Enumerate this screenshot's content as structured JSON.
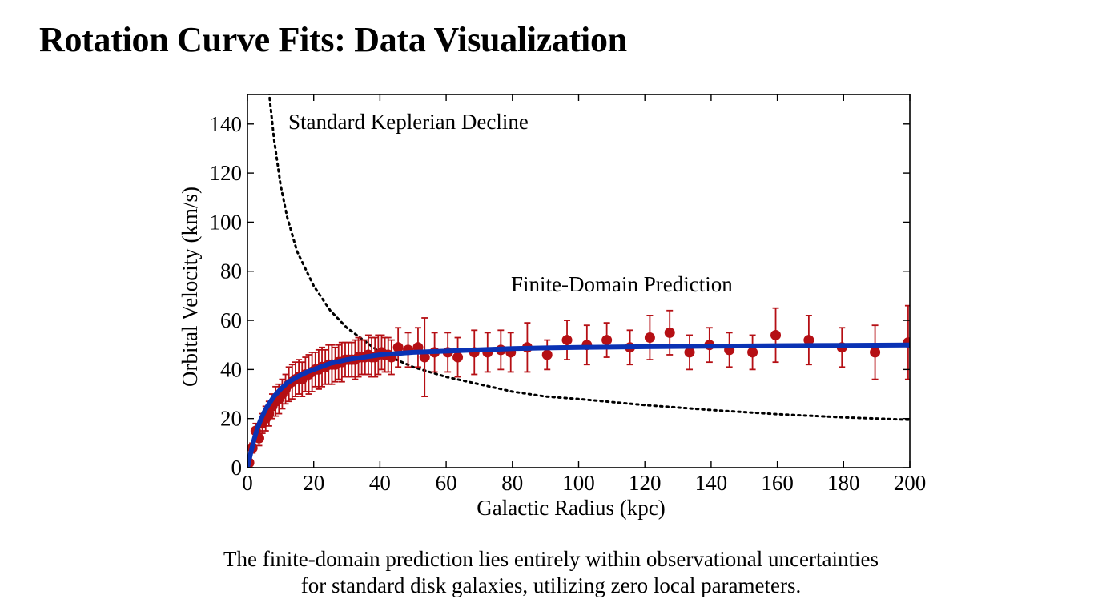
{
  "page": {
    "title": "Rotation Curve Fits: Data Visualization",
    "caption_line1": "The finite-domain prediction lies entirely within observational uncertainties",
    "caption_line2": "for standard disk galaxies, utilizing zero local parameters."
  },
  "colors": {
    "observed": "#b50f14",
    "prediction": "#0a32b4",
    "keplerian": "#000000",
    "axes": "#000000"
  },
  "chart_data": {
    "type": "scatter",
    "title": "",
    "xlabel": "Galactic Radius (kpc)",
    "ylabel": "Orbital Velocity (km/s)",
    "xlim": [
      0,
      200
    ],
    "ylim": [
      0,
      150
    ],
    "x_ticks": [
      0,
      20,
      40,
      60,
      80,
      100,
      120,
      140,
      160,
      180,
      200
    ],
    "y_ticks": [
      0,
      20,
      40,
      60,
      80,
      100,
      120,
      140
    ],
    "grid": false,
    "legend": "none",
    "annotations": [
      {
        "text": "Standard Keplerian Decline",
        "x": 12.5,
        "y": 140
      },
      {
        "text": "Finite-Domain Prediction",
        "x": 80.5,
        "y": 74
      }
    ],
    "series": [
      {
        "type": "scatter_errorbar",
        "x": [
          0.5,
          1.5,
          2.5,
          3.5,
          4.5,
          5.5,
          6.5,
          7.5,
          8.5,
          9.5,
          10.5,
          11.5,
          12.5,
          13.5,
          14.5,
          15.5,
          16.5,
          17.5,
          18.5,
          19.5,
          20.5,
          21.5,
          22.5,
          23.5,
          24.5,
          25.5,
          26.5,
          27.5,
          28.5,
          29.5,
          30.5,
          31.5,
          32.5,
          33.5,
          34.5,
          35.5,
          36.5,
          37.5,
          38.5,
          39.5,
          40.5,
          41.5,
          42.5,
          43.5,
          45.5,
          48.5,
          51.5,
          53.5,
          56.5,
          60.5,
          63.5,
          68.5,
          72.5,
          76.5,
          79.5,
          84.5,
          90.5,
          96.5,
          102.5,
          108.5,
          115.5,
          121.5,
          127.5,
          133.5,
          139.5,
          145.5,
          152.5,
          159.5,
          169.5,
          179.5,
          189.5,
          199.5
        ],
        "y": [
          2,
          8,
          15,
          12,
          18,
          20,
          22,
          25,
          27,
          28,
          30,
          32,
          34,
          35,
          36,
          37,
          36,
          38,
          38,
          39,
          40,
          40,
          41,
          41,
          42,
          42,
          42,
          43,
          43,
          44,
          44,
          44,
          44,
          45,
          45,
          45,
          46,
          45,
          45,
          46,
          47,
          46,
          46,
          45,
          49,
          48,
          49,
          45,
          47,
          47,
          45,
          47,
          47,
          48,
          47,
          49,
          46,
          52,
          50,
          52,
          49,
          53,
          55,
          47,
          50,
          48,
          47,
          54,
          52,
          49,
          47,
          51
        ],
        "error": [
          1,
          2,
          3,
          3,
          4,
          5,
          5,
          5,
          6,
          6,
          6,
          6,
          7,
          7,
          7,
          7,
          7,
          7,
          8,
          8,
          7,
          8,
          8,
          7,
          8,
          8,
          7,
          7,
          8,
          7,
          7,
          7,
          8,
          8,
          7,
          7,
          8,
          8,
          8,
          8,
          7,
          7,
          7,
          7,
          8,
          7,
          8,
          16,
          8,
          8,
          8,
          9,
          8,
          8,
          8,
          10,
          6,
          8,
          8,
          7,
          7,
          9,
          9,
          7,
          7,
          7,
          7,
          11,
          10,
          8,
          11,
          15
        ]
      },
      {
        "type": "line",
        "x": [
          0,
          1,
          2,
          3,
          4,
          5,
          6,
          8,
          10,
          12,
          15,
          18,
          20,
          25,
          30,
          35,
          40,
          50,
          60,
          70,
          80,
          90,
          100,
          120,
          140,
          160,
          180,
          200
        ],
        "y": [
          0,
          6,
          11.5,
          16,
          19.5,
          22.5,
          25,
          29,
          32,
          34.5,
          37,
          39,
          40,
          42.5,
          44,
          45,
          46,
          47,
          47.5,
          48,
          48.5,
          48.8,
          49,
          49.3,
          49.5,
          49.7,
          49.8,
          50
        ]
      },
      {
        "type": "dotted_line",
        "x": [
          6.5,
          8,
          10,
          12,
          15,
          20,
          25,
          30,
          40,
          50,
          60,
          70,
          80,
          90,
          100,
          120,
          140,
          160,
          180,
          200
        ],
        "y": [
          153,
          134,
          115,
          102,
          88,
          74,
          64,
          57,
          47,
          41,
          37,
          34,
          31,
          29,
          28,
          25.5,
          23.5,
          21.8,
          20.5,
          19.5
        ]
      }
    ]
  }
}
